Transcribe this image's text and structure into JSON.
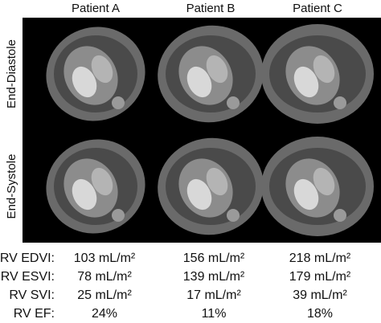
{
  "columns": [
    "Patient A",
    "Patient B",
    "Patient C"
  ],
  "rows": [
    "End-Diastole",
    "End-Systole"
  ],
  "table": {
    "rows": [
      {
        "label": "RV EDVI:",
        "values": [
          "103 mL/m²",
          "156 mL/m²",
          "218 mL/m²"
        ]
      },
      {
        "label": "RV ESVI:",
        "values": [
          "78 mL/m²",
          "139 mL/m²",
          "179 mL/m²"
        ]
      },
      {
        "label": "RV SVI:",
        "values": [
          "25 mL/m²",
          "17 mL/m²",
          "39 mL/m²"
        ]
      },
      {
        "label": "RV EF:",
        "values": [
          "24%",
          "11%",
          "18%"
        ]
      }
    ]
  }
}
